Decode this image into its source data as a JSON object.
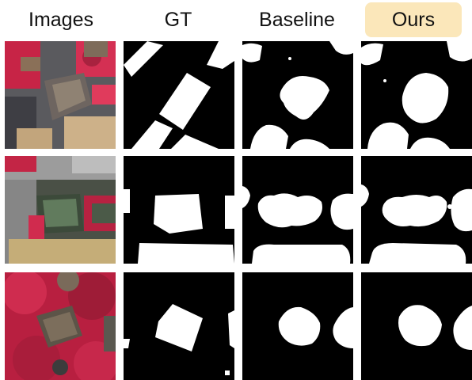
{
  "columns": [
    {
      "label": "Images"
    },
    {
      "label": "GT"
    },
    {
      "label": "Baseline"
    },
    {
      "label": "Ours"
    }
  ],
  "colors": {
    "highlight": "#fbe7ba",
    "mask_fg": "#ffffff",
    "mask_bg": "#000000",
    "vegetation_ir": "#d8264a"
  },
  "rows": [
    {
      "name": "sample-1"
    },
    {
      "name": "sample-2"
    },
    {
      "name": "sample-3"
    }
  ]
}
